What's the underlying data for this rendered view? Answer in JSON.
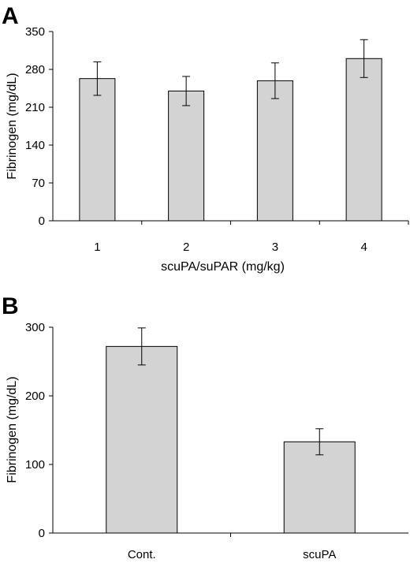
{
  "chart_data": [
    {
      "type": "bar",
      "panel_label": "A",
      "categories": [
        "1",
        "2",
        "3",
        "4"
      ],
      "values": [
        263,
        240,
        259,
        300
      ],
      "errors": [
        31,
        27,
        33,
        35
      ],
      "xlabel": "scuPA/suPAR (mg/kg)",
      "ylabel": "Fibrinogen (mg/dL)",
      "ylim": [
        0,
        350
      ],
      "yticks": [
        0,
        70,
        140,
        210,
        280,
        350
      ],
      "bar_color": "#d3d3d3",
      "grid": false
    },
    {
      "type": "bar",
      "panel_label": "B",
      "categories": [
        "Cont.",
        "scuPA"
      ],
      "values": [
        272,
        133
      ],
      "errors": [
        27,
        19
      ],
      "xlabel": "",
      "ylabel": "Fibrinogen (mg/dL)",
      "ylim": [
        0,
        300
      ],
      "yticks": [
        0,
        100,
        200,
        300
      ],
      "bar_color": "#d3d3d3",
      "grid": false
    }
  ]
}
